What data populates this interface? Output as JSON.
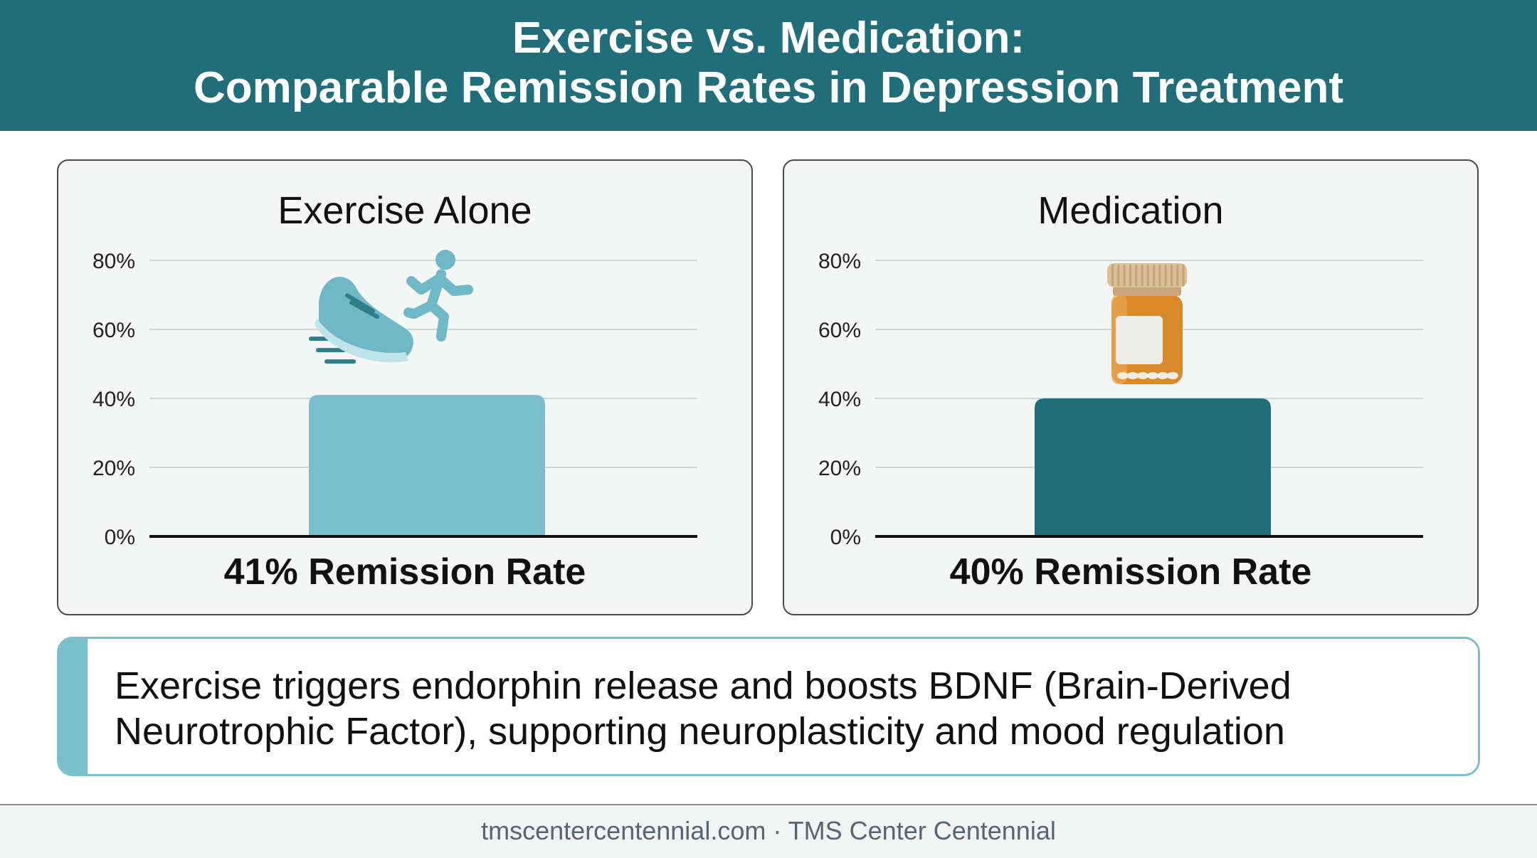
{
  "header": {
    "title_line1": "Exercise vs. Medication:",
    "title_line2": "Comparable Remission Rates in Depression Treatment"
  },
  "chart_data": [
    {
      "type": "bar",
      "title": "Exercise Alone",
      "categories": [
        "Exercise Alone"
      ],
      "values": [
        41
      ],
      "ylim": [
        0,
        80
      ],
      "yticks": [
        "0%",
        "20%",
        "40%",
        "60%",
        "80%"
      ],
      "grid": true,
      "bar_color": "#78bfcb",
      "icon": "running-shoe-and-runner-icon",
      "caption": "41% Remission Rate"
    },
    {
      "type": "bar",
      "title": "Medication",
      "categories": [
        "Medication"
      ],
      "values": [
        40
      ],
      "ylim": [
        0,
        80
      ],
      "yticks": [
        "0%",
        "20%",
        "40%",
        "60%",
        "80%"
      ],
      "grid": true,
      "bar_color": "#1f6e79",
      "icon": "pill-bottle-icon",
      "caption": "40% Remission Rate"
    }
  ],
  "note": {
    "line1": "Exercise triggers endorphin release and boosts BDNF (Brain-Derived",
    "line2": "Neurotrophic Factor), supporting neuroplasticity and mood regulation",
    "accent_color": "#78bfcb"
  },
  "footer": {
    "text": "tmscentercentennial.com · TMS Center Centennial"
  },
  "colors": {
    "header_bg": "#1f6e79",
    "exercise_bar": "#78bfcb",
    "medication_bar": "#1f6e79"
  }
}
